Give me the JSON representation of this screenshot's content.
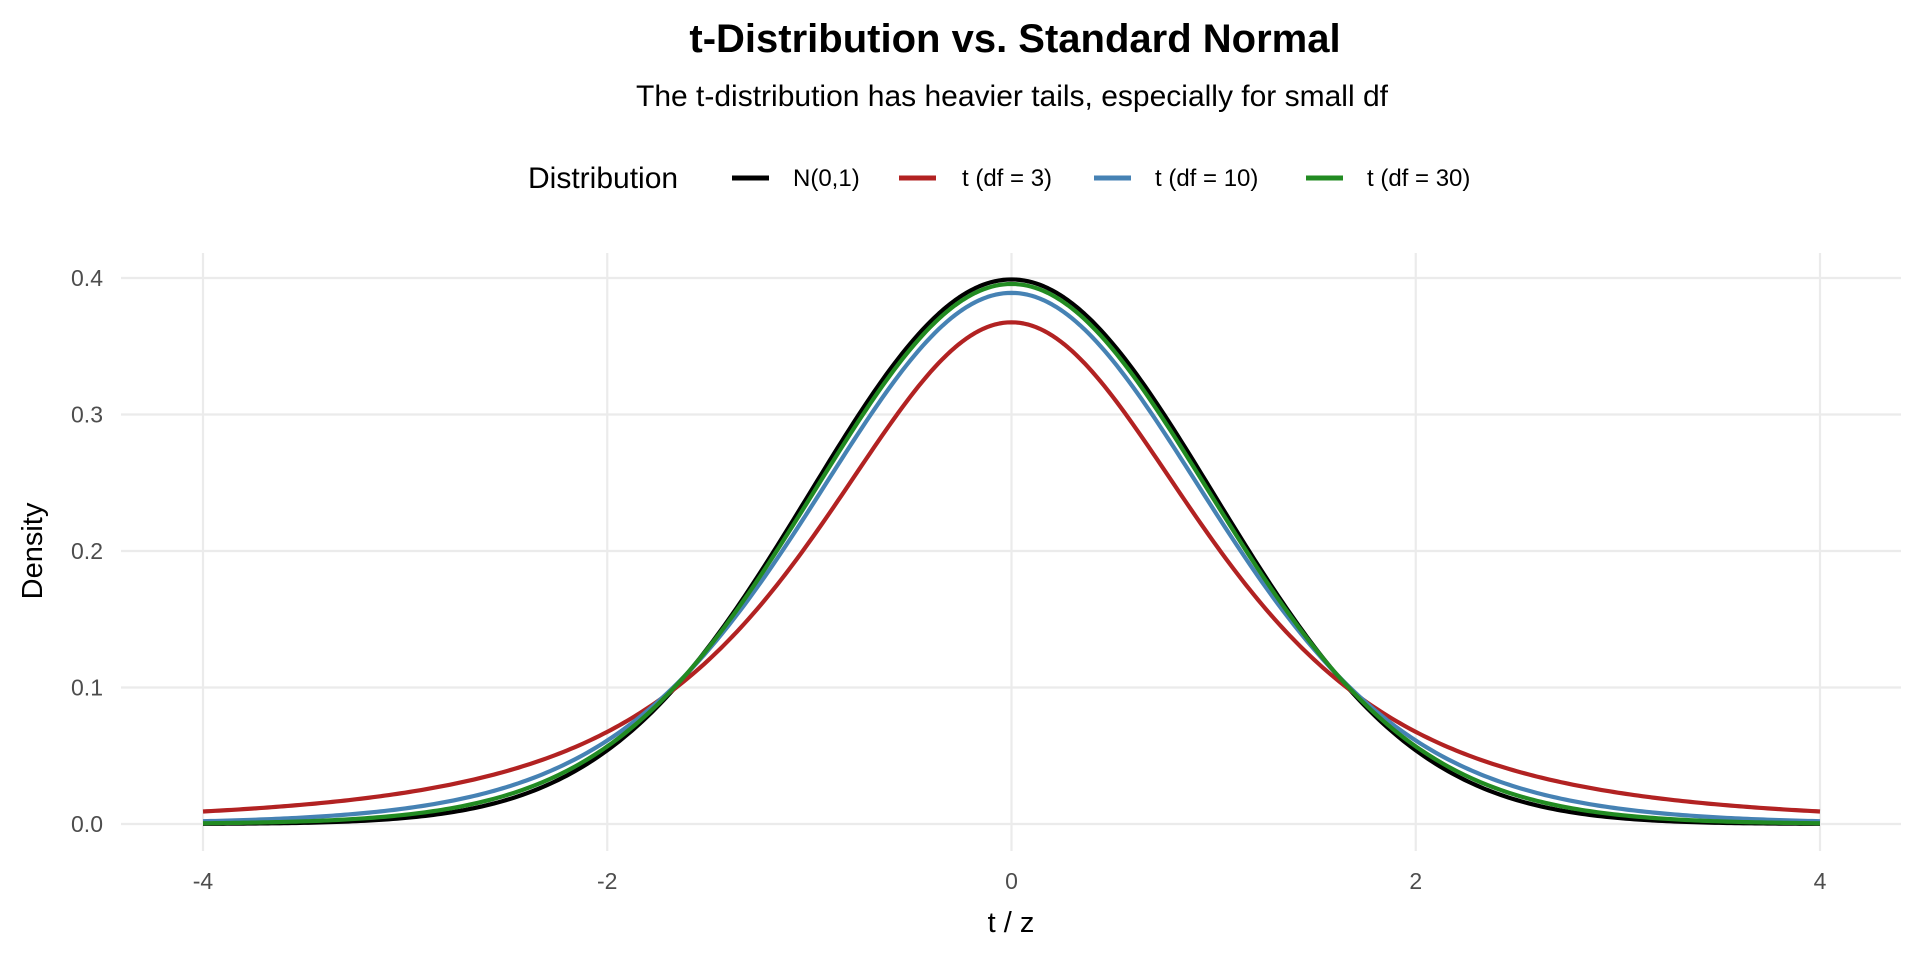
{
  "chart_data": {
    "type": "line",
    "title": "t-Distribution vs. Standard Normal",
    "subtitle": "The t-distribution has heavier tails, especially for small df",
    "xlabel": "t / z",
    "ylabel": "Density",
    "xlim": [
      -4,
      4
    ],
    "ylim": [
      0,
      0.4
    ],
    "x_ticks": [
      -4,
      -2,
      0,
      2,
      4
    ],
    "x_tick_labels": [
      "-4",
      "-2",
      "0",
      "2",
      "4"
    ],
    "y_ticks": [
      0.0,
      0.1,
      0.2,
      0.3,
      0.4
    ],
    "y_tick_labels": [
      "0.0",
      "0.1",
      "0.2",
      "0.3",
      "0.4"
    ],
    "grid": true,
    "legend": {
      "title": "Distribution",
      "position": "top",
      "entries": [
        {
          "label": "N(0,1)",
          "color": "#000000"
        },
        {
          "label": "t (df = 3)",
          "color": "#B22222"
        },
        {
          "label": "t (df = 10)",
          "color": "#4682B4"
        },
        {
          "label": "t (df = 30)",
          "color": "#228B22"
        }
      ]
    },
    "x": [
      -4,
      -3.5,
      -3,
      -2.5,
      -2,
      -1.5,
      -1,
      -0.5,
      0,
      0.5,
      1,
      1.5,
      2,
      2.5,
      3,
      3.5,
      4
    ],
    "series": [
      {
        "name": "N(0,1)",
        "color": "#000000",
        "dist": "normal",
        "values": [
          0.0001,
          0.0009,
          0.0044,
          0.0175,
          0.054,
          0.1295,
          0.242,
          0.3521,
          0.3989,
          0.3521,
          0.242,
          0.1295,
          0.054,
          0.0175,
          0.0044,
          0.0009,
          0.0001
        ]
      },
      {
        "name": "t (df = 3)",
        "color": "#B22222",
        "dist": "t",
        "df": 3,
        "values": [
          0.0092,
          0.0137,
          0.0229,
          0.0364,
          0.0675,
          0.1274,
          0.2067,
          0.3064,
          0.3676,
          0.3064,
          0.2067,
          0.1274,
          0.0675,
          0.0364,
          0.0229,
          0.0137,
          0.0092
        ]
      },
      {
        "name": "t (df = 10)",
        "color": "#4682B4",
        "dist": "t",
        "df": 10,
        "values": [
          0.002,
          0.0042,
          0.0114,
          0.0269,
          0.0611,
          0.1274,
          0.2304,
          0.3397,
          0.3891,
          0.3397,
          0.2304,
          0.1274,
          0.0611,
          0.0269,
          0.0114,
          0.0042,
          0.002
        ]
      },
      {
        "name": "t (df = 30)",
        "color": "#228B22",
        "dist": "t",
        "df": 30,
        "values": [
          0.0003,
          0.0015,
          0.0064,
          0.0205,
          0.0557,
          0.129,
          0.2384,
          0.348,
          0.3956,
          0.348,
          0.2384,
          0.129,
          0.0557,
          0.0205,
          0.0064,
          0.0015,
          0.0003
        ]
      }
    ]
  }
}
